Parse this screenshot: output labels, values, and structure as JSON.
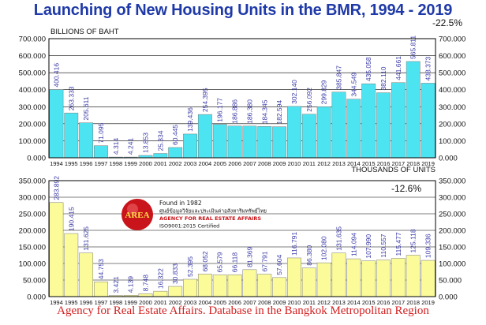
{
  "title": "Launching of New Housing Units in the BMR, 1994 - 2019",
  "footer": "Agency for Real Estate Affairs. Database in the Bangkok Metropolitan Region",
  "logo": {
    "badge_text": "AREA",
    "lines": [
      "Found in 1982",
      "ศูนย์ข้อมูลวิจัยและประเมินค่าอสังหาริมทรัพย์ไทย",
      "AGENCY FOR REAL ESTATE AFFAIRS",
      "ISO9001:2015 Certified"
    ],
    "badge_color": "#c8141a"
  },
  "colors": {
    "top_bar": "#4de4f2",
    "bottom_bar": "#fbfb99",
    "title": "#1f3aa8",
    "footer": "#d42020",
    "data_label": "#3a3aa8"
  },
  "chart_data": [
    {
      "type": "bar",
      "unit_label": "BILLIONS OF BAHT",
      "change_label": "-22.5%",
      "categories": [
        "1994",
        "1995",
        "1996",
        "1997",
        "1998",
        "1999",
        "2000",
        "2001",
        "2002",
        "2003",
        "2004",
        "2005",
        "2006",
        "2007",
        "2008",
        "2009",
        "2010",
        "2011",
        "2012",
        "2013",
        "2014",
        "2015",
        "2016",
        "2017",
        "2018",
        "2019"
      ],
      "values": [
        400.416,
        263.333,
        205.611,
        71.095,
        4.314,
        4.241,
        13.853,
        25.334,
        60.445,
        139.436,
        254.395,
        196.177,
        186.886,
        186.38,
        184.345,
        182.594,
        302.14,
        256.092,
        299.829,
        385.847,
        344.549,
        435.058,
        382.11,
        441.661,
        565.811,
        438.373
      ],
      "data_labels": [
        "400.416",
        "263.333",
        "205.611",
        "71.095",
        "4.314",
        "4.241",
        "13.853",
        "25.334",
        "60.445",
        "139.436",
        "254.395",
        "196.177",
        "186.886",
        "186.380",
        "184.345",
        "182.594",
        "302.140",
        "256.092",
        "299.829",
        "385.847",
        "344.549",
        "435.058",
        "382.110",
        "441.661",
        "565.811",
        "438.373"
      ],
      "ylim": [
        0,
        700000
      ],
      "ytick_labels": [
        "0.000",
        "100.000",
        "200.000",
        "300.000",
        "400.000",
        "500.000",
        "600.000",
        "700.000"
      ],
      "grid": true
    },
    {
      "type": "bar",
      "unit_label": "THOUSANDS OF UNITS",
      "change_label": "-12.6%",
      "categories": [
        "1994",
        "1995",
        "1996",
        "1997",
        "1998",
        "1999",
        "2000",
        "2001",
        "2002",
        "2003",
        "2004",
        "2005",
        "2006",
        "2007",
        "2008",
        "2009",
        "2010",
        "2011",
        "2012",
        "2013",
        "2014",
        "2015",
        "2016",
        "2017",
        "2018",
        "2019"
      ],
      "values": [
        283.892,
        190.415,
        131.625,
        44.753,
        3.421,
        4.139,
        8.748,
        16.322,
        30.833,
        52.395,
        68.052,
        65.579,
        66.118,
        81.369,
        67.791,
        57.604,
        116.791,
        86.38,
        102.08,
        131.635,
        114.094,
        107.99,
        110.557,
        115.477,
        125.118,
        109.336
      ],
      "data_labels": [
        "283.892",
        "190.415",
        "131.625",
        "44.753",
        "3.421",
        "4.139",
        "8.748",
        "16.322",
        "30.833",
        "52.395",
        "68.052",
        "65.579",
        "66.118",
        "81.369",
        "67.791",
        "57.604",
        "116.791",
        "86.380",
        "102.080",
        "131.635",
        "114.094",
        "107.990",
        "110.557",
        "115.477",
        "125.118",
        "109.336"
      ],
      "ylim": [
        0,
        350000
      ],
      "ytick_labels": [
        "0.000",
        "50.000",
        "100.000",
        "150.000",
        "200.000",
        "250.000",
        "300.000",
        "350.000"
      ],
      "grid": true
    }
  ]
}
